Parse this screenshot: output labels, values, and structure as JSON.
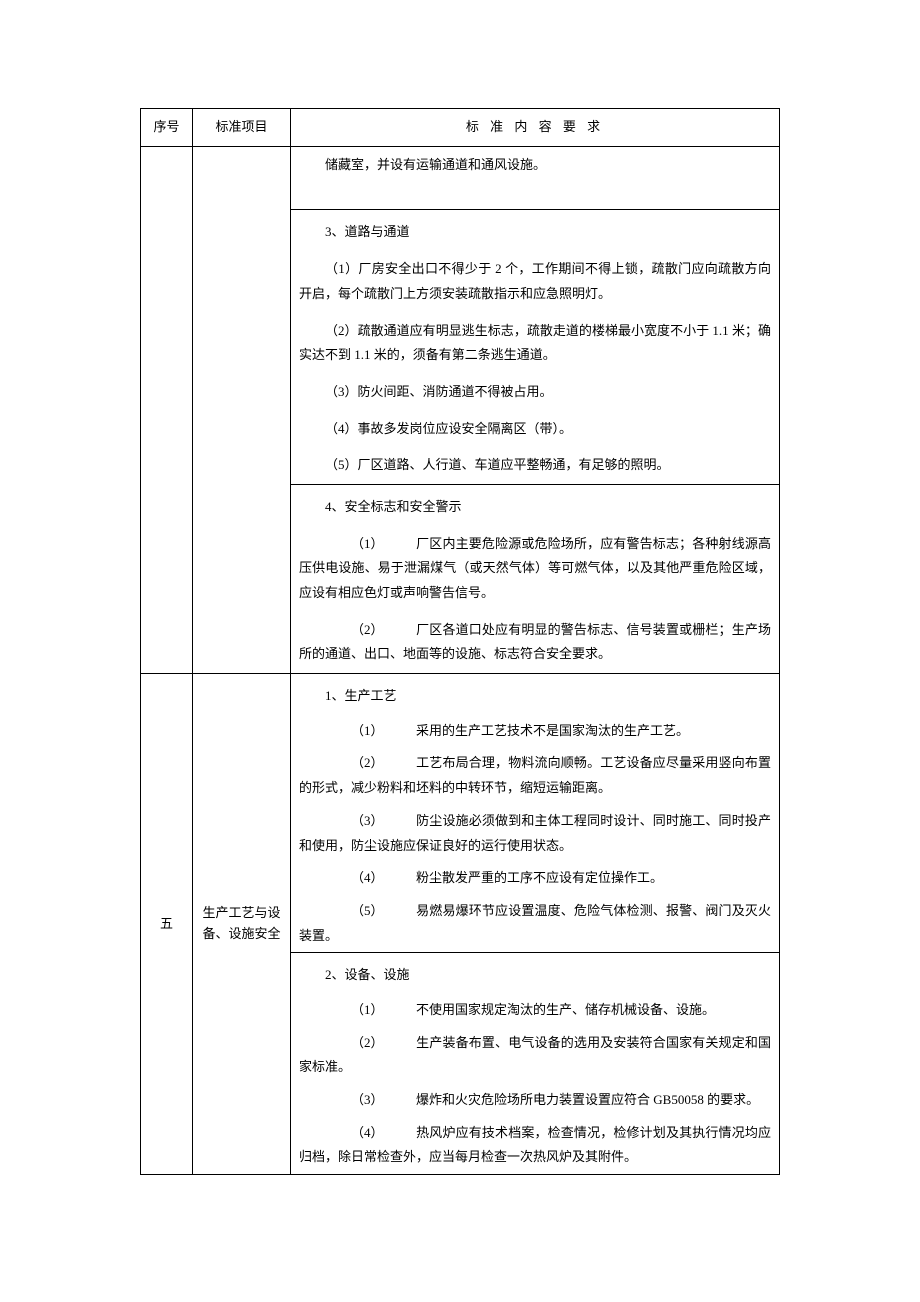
{
  "header": {
    "seq": "序号",
    "item": "标准项目",
    "content": "标 准 内 容 要 求"
  },
  "rows": [
    {
      "seq": "",
      "item": "",
      "sections": [
        {
          "lead": "储藏室，并设有运输通道和通风设施。",
          "spacer": true
        },
        {
          "title": "3、道路与通道",
          "paras": [
            "（1）厂房安全出口不得少于 2 个，工作期间不得上锁，疏散门应向疏散方向开启，每个疏散门上方须安装疏散指示和应急照明灯。",
            "（2）疏散通道应有明显逃生标志，疏散走道的楼梯最小宽度不小于 1.1 米；确实达不到 1.1 米的，须备有第二条逃生通道。",
            "（3）防火间距、消防通道不得被占用。",
            "（4）事故多发岗位应设安全隔离区（带）。",
            "（5）厂区道路、人行道、车道应平整畅通，有足够的照明。"
          ]
        },
        {
          "title": "4、安全标志和安全警示",
          "numbered": [
            {
              "n": "（1）",
              "t": "厂区内主要危险源或危险场所，应有警告标志；各种射线源高压供电设施、易于泄漏煤气（或天然气体）等可燃气体，以及其他严重危险区域，应设有相应色灯或声响警告信号。"
            },
            {
              "n": "（2）",
              "t": "厂区各道口处应有明显的警告标志、信号装置或栅栏；生产场所的通道、出口、地面等的设施、标志符合安全要求。"
            }
          ]
        }
      ]
    },
    {
      "seq": "五",
      "item": "生产工艺与设备、设施安全",
      "sections": [
        {
          "title": "1、生产工艺",
          "numbered": [
            {
              "n": "（1）",
              "t": "采用的生产工艺技术不是国家淘汰的生产工艺。"
            },
            {
              "n": "（2）",
              "t": "工艺布局合理，物料流向顺畅。工艺设备应尽量采用竖向布置的形式，减少粉料和坯料的中转环节，缩短运输距离。"
            },
            {
              "n": "（3）",
              "t": "防尘设施必须做到和主体工程同时设计、同时施工、同时投产和使用，防尘设施应保证良好的运行使用状态。"
            },
            {
              "n": "（4）",
              "t": "粉尘散发严重的工序不应设有定位操作工。"
            },
            {
              "n": "（5）",
              "t": "易燃易爆环节应设置温度、危险气体检测、报警、阀门及灭火装置。"
            }
          ]
        },
        {
          "title": "2、设备、设施",
          "numbered": [
            {
              "n": "（1）",
              "t": "不使用国家规定淘汰的生产、储存机械设备、设施。"
            },
            {
              "n": "（2）",
              "t": "生产装备布置、电气设备的选用及安装符合国家有关规定和国家标准。"
            },
            {
              "n": "（3）",
              "t": "爆炸和火灾危险场所电力装置设置应符合 GB50058 的要求。"
            },
            {
              "n": "（4）",
              "t": "热风炉应有技术档案，检查情况，检修计划及其执行情况均应归档，除日常检查外，应当每月检查一次热风炉及其附件。"
            }
          ]
        }
      ]
    }
  ]
}
